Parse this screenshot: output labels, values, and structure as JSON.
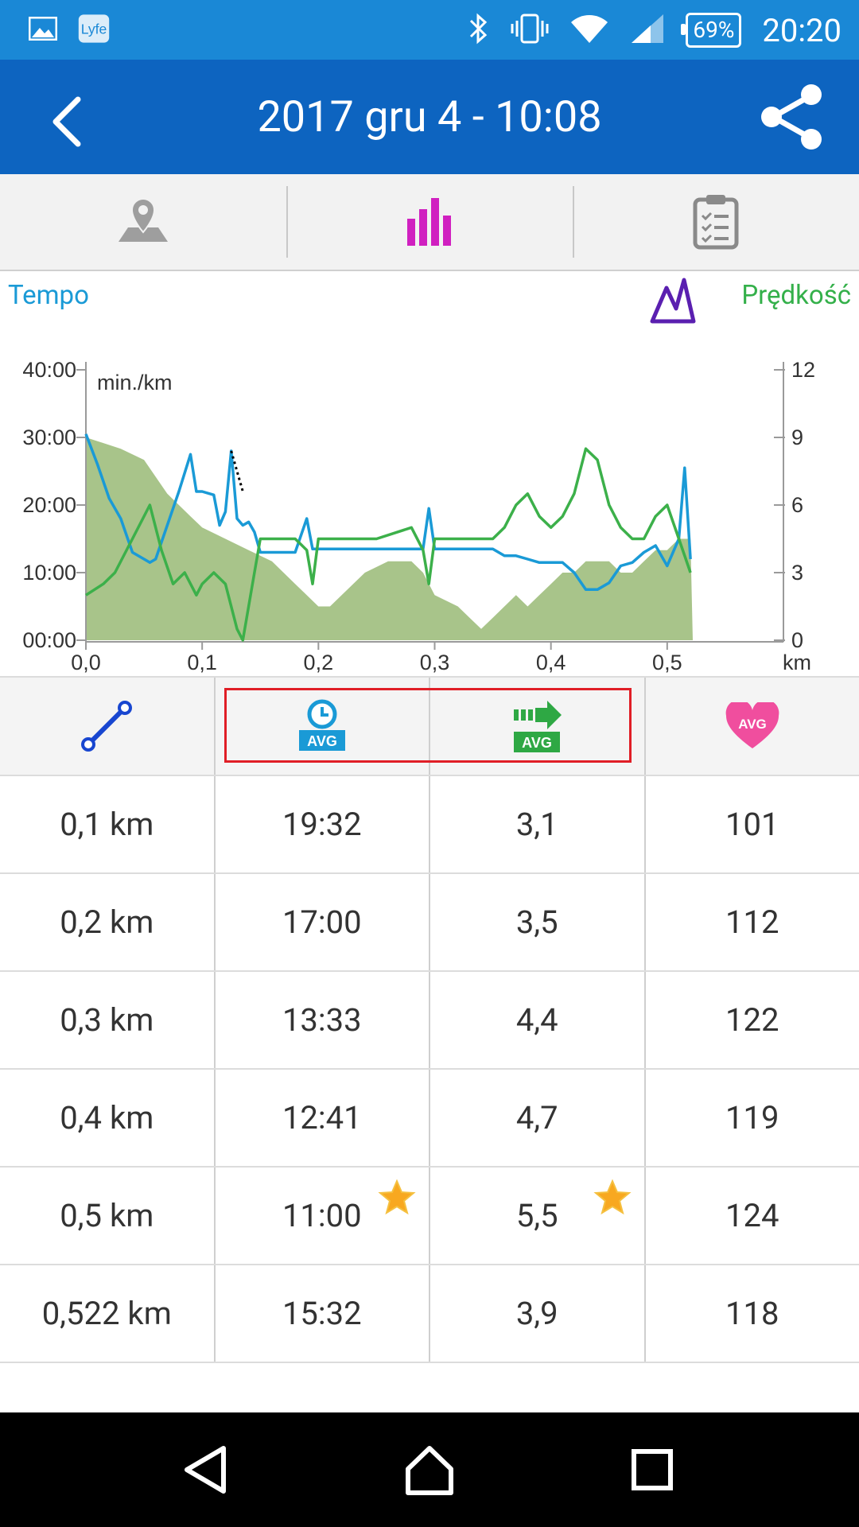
{
  "status_bar": {
    "battery": "69%",
    "time": "20:20"
  },
  "app_bar": {
    "title": "2017 gru 4 - 10:08"
  },
  "tabs": [
    {
      "icon": "map-pin-icon",
      "active": false
    },
    {
      "icon": "bar-chart-icon",
      "active": true
    },
    {
      "icon": "clipboard-list-icon",
      "active": false
    }
  ],
  "chart_labels": {
    "left": "Tempo",
    "right": "Prędkość",
    "unit": "min./km"
  },
  "chart_data": {
    "type": "line",
    "xlabel": "km",
    "x_ticks": [
      "0,0",
      "0,1",
      "0,2",
      "0,3",
      "0,4",
      "0,5"
    ],
    "xlim": [
      0,
      0.6
    ],
    "left_axis": {
      "ticks": [
        "00:00",
        "10:00",
        "20:00",
        "30:00",
        "40:00"
      ],
      "range_minutes": [
        0,
        40
      ]
    },
    "right_axis": {
      "ticks": [
        "0",
        "3",
        "6",
        "9",
        "12"
      ],
      "range": [
        0,
        12
      ]
    },
    "colors": {
      "tempo": "#1a9ad6",
      "speed": "#3cb04a",
      "elevation": "#a8c48a"
    },
    "series": [
      {
        "key": "tempo",
        "axis": "left",
        "x": [
          0,
          0.01,
          0.02,
          0.03,
          0.04,
          0.05,
          0.055,
          0.06,
          0.07,
          0.08,
          0.09,
          0.095,
          0.1,
          0.11,
          0.115,
          0.12,
          0.125,
          0.13,
          0.135,
          0.14,
          0.145,
          0.15,
          0.16,
          0.17,
          0.18,
          0.19,
          0.195,
          0.2,
          0.22,
          0.25,
          0.28,
          0.29,
          0.295,
          0.3,
          0.32,
          0.34,
          0.35,
          0.36,
          0.37,
          0.38,
          0.39,
          0.4,
          0.41,
          0.42,
          0.43,
          0.44,
          0.45,
          0.46,
          0.47,
          0.48,
          0.49,
          0.5,
          0.51,
          0.515,
          0.52
        ],
        "y": [
          30.5,
          26,
          21,
          18,
          13,
          12,
          11.5,
          12,
          17,
          22,
          27.5,
          22,
          22,
          21.5,
          17,
          19,
          28,
          18,
          17,
          17.5,
          16,
          13,
          13,
          13,
          13,
          18,
          13.5,
          13.5,
          13.5,
          13.5,
          13.5,
          13.5,
          19.5,
          13.5,
          13.5,
          13.5,
          13.5,
          12.5,
          12.5,
          12,
          11.5,
          11.5,
          11.5,
          10,
          7.5,
          7.5,
          8.5,
          11,
          11.5,
          13,
          14,
          11,
          15,
          25.5,
          12
        ]
      },
      {
        "key": "speed",
        "axis": "right",
        "x": [
          0,
          0.015,
          0.025,
          0.04,
          0.055,
          0.065,
          0.075,
          0.085,
          0.095,
          0.1,
          0.11,
          0.12,
          0.13,
          0.135,
          0.14,
          0.145,
          0.15,
          0.16,
          0.18,
          0.19,
          0.195,
          0.2,
          0.25,
          0.28,
          0.29,
          0.295,
          0.3,
          0.33,
          0.35,
          0.36,
          0.37,
          0.38,
          0.39,
          0.4,
          0.41,
          0.42,
          0.43,
          0.44,
          0.45,
          0.46,
          0.47,
          0.48,
          0.49,
          0.5,
          0.51,
          0.52
        ],
        "y": [
          2,
          2.5,
          3,
          4.5,
          6,
          4,
          2.5,
          3,
          2,
          2.5,
          3,
          2.5,
          0.5,
          0,
          1.5,
          3,
          4.5,
          4.5,
          4.5,
          4,
          2.5,
          4.5,
          4.5,
          5,
          4,
          2.5,
          4.5,
          4.5,
          4.5,
          5,
          6,
          6.5,
          5.5,
          5,
          5.5,
          6.5,
          8.5,
          8,
          6,
          5,
          4.5,
          4.5,
          5.5,
          6,
          4.5,
          3
        ]
      },
      {
        "key": "elevation",
        "axis": "right",
        "x": [
          0,
          0.03,
          0.05,
          0.07,
          0.09,
          0.1,
          0.12,
          0.14,
          0.16,
          0.18,
          0.2,
          0.21,
          0.22,
          0.24,
          0.26,
          0.28,
          0.29,
          0.3,
          0.32,
          0.33,
          0.34,
          0.35,
          0.36,
          0.37,
          0.38,
          0.39,
          0.4,
          0.41,
          0.42,
          0.43,
          0.44,
          0.45,
          0.46,
          0.47,
          0.48,
          0.49,
          0.5,
          0.51,
          0.52,
          0.522
        ],
        "y": [
          9,
          8.5,
          8,
          6.5,
          5.5,
          5,
          4.5,
          4,
          3.5,
          2.5,
          1.5,
          1.5,
          2,
          3,
          3.5,
          3.5,
          3,
          2,
          1.5,
          1,
          0.5,
          1,
          1.5,
          2,
          1.5,
          2,
          2.5,
          3,
          3,
          3.5,
          3.5,
          3.5,
          3,
          3,
          3.5,
          4,
          4,
          4.5,
          4.5,
          0
        ]
      }
    ],
    "tempo_gap": {
      "x": [
        0.125,
        0.135
      ],
      "y": [
        28,
        22
      ]
    }
  },
  "table": {
    "header_icons": [
      "distance-icon",
      "avg-time-icon",
      "avg-speed-icon",
      "avg-heart-icon"
    ],
    "avg_badge": "AVG",
    "rows": [
      {
        "distance": "0,1 km",
        "time": "19:32",
        "speed": "3,1",
        "hr": "101",
        "star": false
      },
      {
        "distance": "0,2 km",
        "time": "17:00",
        "speed": "3,5",
        "hr": "112",
        "star": false
      },
      {
        "distance": "0,3 km",
        "time": "13:33",
        "speed": "4,4",
        "hr": "122",
        "star": false
      },
      {
        "distance": "0,4 km",
        "time": "12:41",
        "speed": "4,7",
        "hr": "119",
        "star": false
      },
      {
        "distance": "0,5 km",
        "time": "11:00",
        "speed": "5,5",
        "hr": "124",
        "star": true
      },
      {
        "distance": "0,522 km",
        "time": "15:32",
        "speed": "3,9",
        "hr": "118",
        "star": false
      }
    ]
  },
  "nav_bar": [
    "back-icon",
    "home-icon",
    "recents-icon"
  ]
}
